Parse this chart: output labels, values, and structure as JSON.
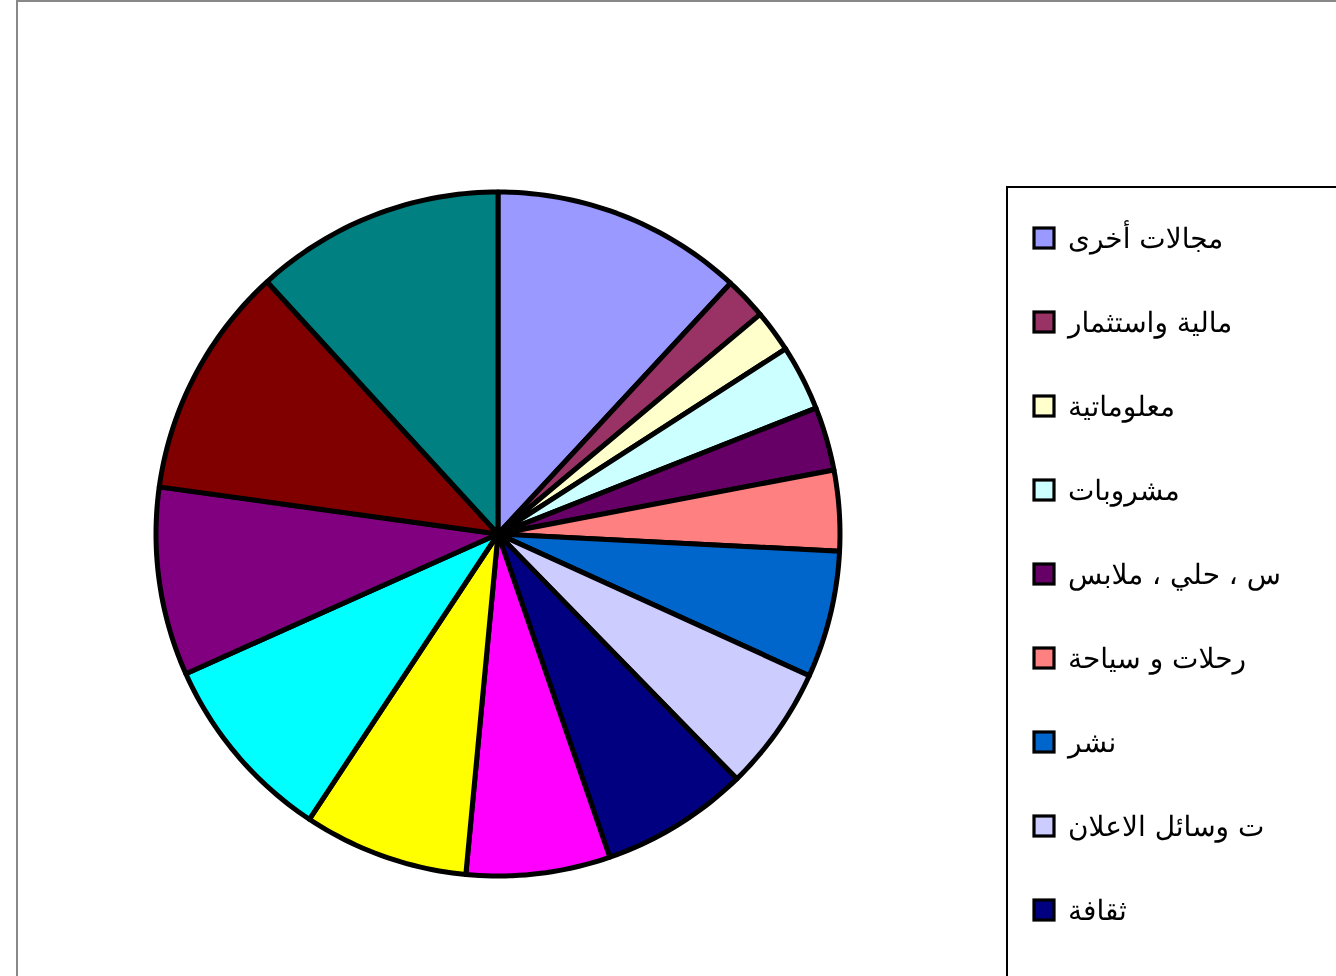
{
  "chart_data": {
    "type": "pie",
    "categories": [
      "مجالات أخرى",
      "مالية واستثمار",
      "معلوماتية",
      "مشروبات",
      "س ، حلي ، ملابس",
      "رحلات و سياحة",
      "نشر",
      "ت وسائل الاعلان",
      "ثقافة",
      null,
      null,
      null,
      null,
      null,
      null
    ],
    "values": [
      11.9,
      2.0,
      2.0,
      3.1,
      3.0,
      3.8,
      6.0,
      5.9,
      7.0,
      6.8,
      7.8,
      9.0,
      8.9,
      11.0,
      11.8
    ],
    "colors": [
      "#9999ff",
      "#993366",
      "#ffffcc",
      "#ccffff",
      "#660066",
      "#ff8080",
      "#0066cc",
      "#ccccff",
      "#000080",
      "#ff00ff",
      "#ffff00",
      "#00ffff",
      "#800080",
      "#800000",
      "#008080"
    ],
    "legend": "right"
  }
}
